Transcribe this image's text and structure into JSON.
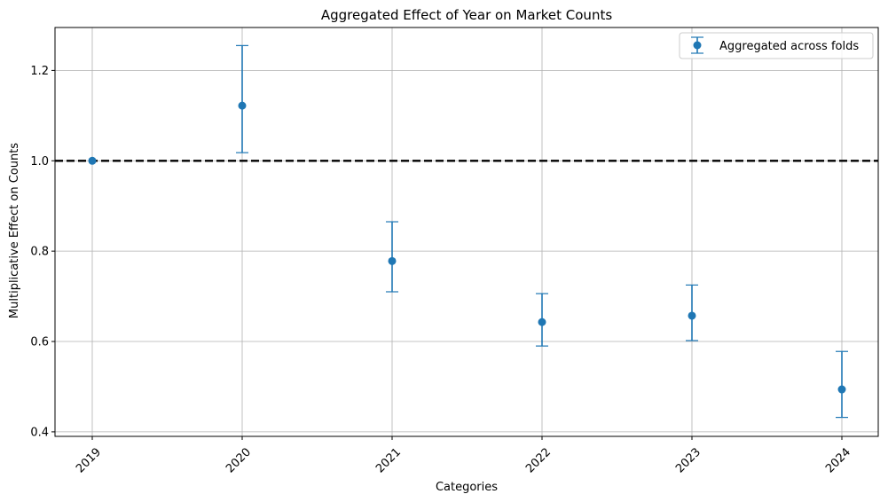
{
  "chart_data": {
    "type": "scatter",
    "title": "Aggregated Effect of Year on Market Counts",
    "xlabel": "Categories",
    "ylabel": "Multiplicative Effect on Counts",
    "categories": [
      "2019",
      "2020",
      "2021",
      "2022",
      "2023",
      "2024"
    ],
    "series": [
      {
        "name": "Aggregated across folds",
        "color": "#1f77b4",
        "values": [
          1.0,
          1.122,
          0.778,
          0.643,
          0.657,
          0.494
        ],
        "lower": [
          1.0,
          1.018,
          0.71,
          0.59,
          0.602,
          0.432
        ],
        "upper": [
          1.0,
          1.255,
          0.865,
          0.706,
          0.725,
          0.578
        ]
      }
    ],
    "reference_line": {
      "y": 1.0,
      "style": "dashed",
      "color": "#000000"
    },
    "ylim": [
      0.39,
      1.295
    ],
    "yticks": [
      0.4,
      0.6,
      0.8,
      1.0,
      1.2
    ],
    "ytick_labels": [
      "0.4",
      "0.6",
      "0.8",
      "1.0",
      "1.2"
    ],
    "xtick_rotation": 45,
    "grid": true,
    "legend_position": "top-right"
  }
}
